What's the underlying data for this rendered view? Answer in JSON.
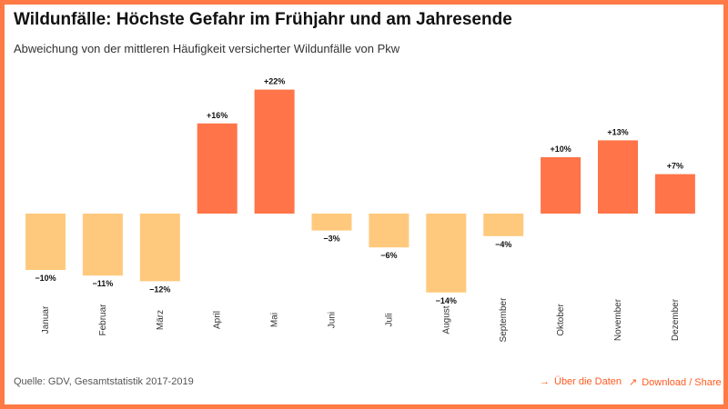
{
  "header": {
    "title": "Wildunfälle: Höchste Gefahr im Frühjahr und am Jahresende",
    "subtitle": "Abweichung von der mittleren Häufigkeit versicherter Wildunfälle von Pkw"
  },
  "footer": {
    "source": "Quelle: GDV, Gesamtstatistik 2017-2019",
    "links": [
      {
        "label": "Über die Daten",
        "icon": "arrow-right-icon",
        "glyph": "→"
      },
      {
        "label": "Download / Share",
        "icon": "arrow-up-right-icon",
        "glyph": "↗"
      }
    ]
  },
  "colors": {
    "border": "#ff7a45",
    "positive": "#ff7448",
    "negative": "#ffc97d",
    "link": "#ff5a1f"
  },
  "chart_data": {
    "type": "bar",
    "categories": [
      "Januar",
      "Februar",
      "März",
      "April",
      "Mai",
      "Juni",
      "Juli",
      "August",
      "September",
      "Oktober",
      "November",
      "Dezember"
    ],
    "values": [
      -10,
      -11,
      -12,
      16,
      22,
      -3,
      -6,
      -14,
      -4,
      10,
      13,
      7
    ],
    "labels": [
      "−10%",
      "−11%",
      "−12%",
      "+16%",
      "+22%",
      "−3%",
      "−6%",
      "−14%",
      "−4%",
      "+10%",
      "+13%",
      "+7%"
    ],
    "unit": "%",
    "ylim": [
      -14,
      22
    ],
    "grid": false,
    "legend": "none"
  }
}
